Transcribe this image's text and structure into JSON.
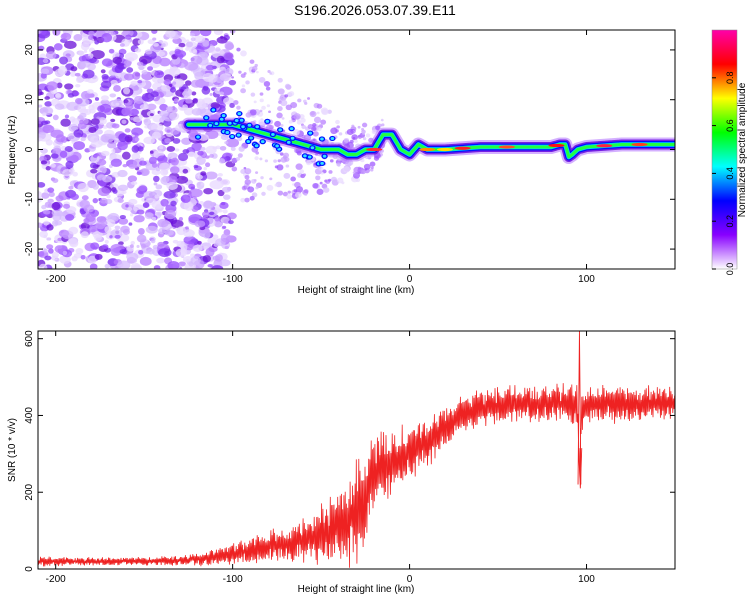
{
  "title": "S196.2026.053.07.39.E11",
  "chart_data": [
    {
      "type": "heatmap",
      "xlabel": "Height of straight line (km)",
      "ylabel": "Frequency (Hz)",
      "xlim": [
        -210,
        150
      ],
      "ylim": [
        -24,
        24
      ],
      "xticks": [
        -200,
        -100,
        0,
        100
      ],
      "yticks": [
        -20,
        -10,
        0,
        10,
        20
      ],
      "colorbar": {
        "label": "Normalized spectral amplitude",
        "range": [
          0,
          1
        ],
        "ticks": [
          "0.0",
          "0.2",
          "0.4",
          "0.6",
          "0.8"
        ],
        "colors": [
          "#ffffff",
          "#8800ff",
          "#0000ff",
          "#00ffff",
          "#00ff00",
          "#ffff00",
          "#ff0000",
          "#ff00aa"
        ]
      },
      "ridge": {
        "x": [
          -125,
          -110,
          -100,
          -90,
          -80,
          -70,
          -60,
          -50,
          -40,
          -35,
          -30,
          -25,
          -20,
          -15,
          -10,
          -5,
          0,
          5,
          10,
          20,
          40,
          60,
          80,
          85,
          88,
          90,
          92,
          95,
          100,
          120,
          150
        ],
        "freq": [
          5,
          5,
          5,
          4,
          3,
          2,
          1,
          0,
          0,
          -1,
          -1,
          0,
          0,
          3,
          3,
          0,
          -1,
          1,
          0,
          0,
          0.5,
          0.5,
          0.5,
          1,
          1,
          -1.5,
          -1,
          0,
          0.5,
          1,
          1
        ]
      }
    },
    {
      "type": "line",
      "xlabel": "Height of straight line (km)",
      "ylabel": "SNR (10 * v/v)",
      "xlim": [
        -210,
        150
      ],
      "ylim": [
        0,
        620
      ],
      "xticks": [
        -200,
        -100,
        0,
        100
      ],
      "yticks": [
        0,
        200,
        400,
        600
      ],
      "color": "#ee2222",
      "series": [
        {
          "name": "SNR",
          "x": [
            -210,
            -180,
            -150,
            -130,
            -120,
            -110,
            -100,
            -90,
            -80,
            -70,
            -60,
            -50,
            -40,
            -35,
            -30,
            -25,
            -20,
            -10,
            0,
            10,
            20,
            30,
            40,
            60,
            80,
            90,
            95,
            96,
            97,
            100,
            120,
            150
          ],
          "mean": [
            20,
            20,
            20,
            22,
            25,
            30,
            38,
            48,
            58,
            65,
            75,
            90,
            105,
            125,
            140,
            190,
            250,
            275,
            300,
            330,
            370,
            400,
            420,
            430,
            430,
            430,
            430,
            220,
            410,
            430,
            430,
            430
          ],
          "amplitude": [
            12,
            10,
            10,
            12,
            15,
            20,
            25,
            30,
            38,
            45,
            55,
            70,
            90,
            110,
            130,
            130,
            90,
            80,
            70,
            60,
            50,
            45,
            45,
            45,
            45,
            50,
            60,
            40,
            55,
            45,
            45,
            45
          ],
          "peaks": [
            {
              "x": 96,
              "y": 620
            },
            {
              "x": 96.5,
              "y": 210
            }
          ]
        }
      ]
    }
  ]
}
